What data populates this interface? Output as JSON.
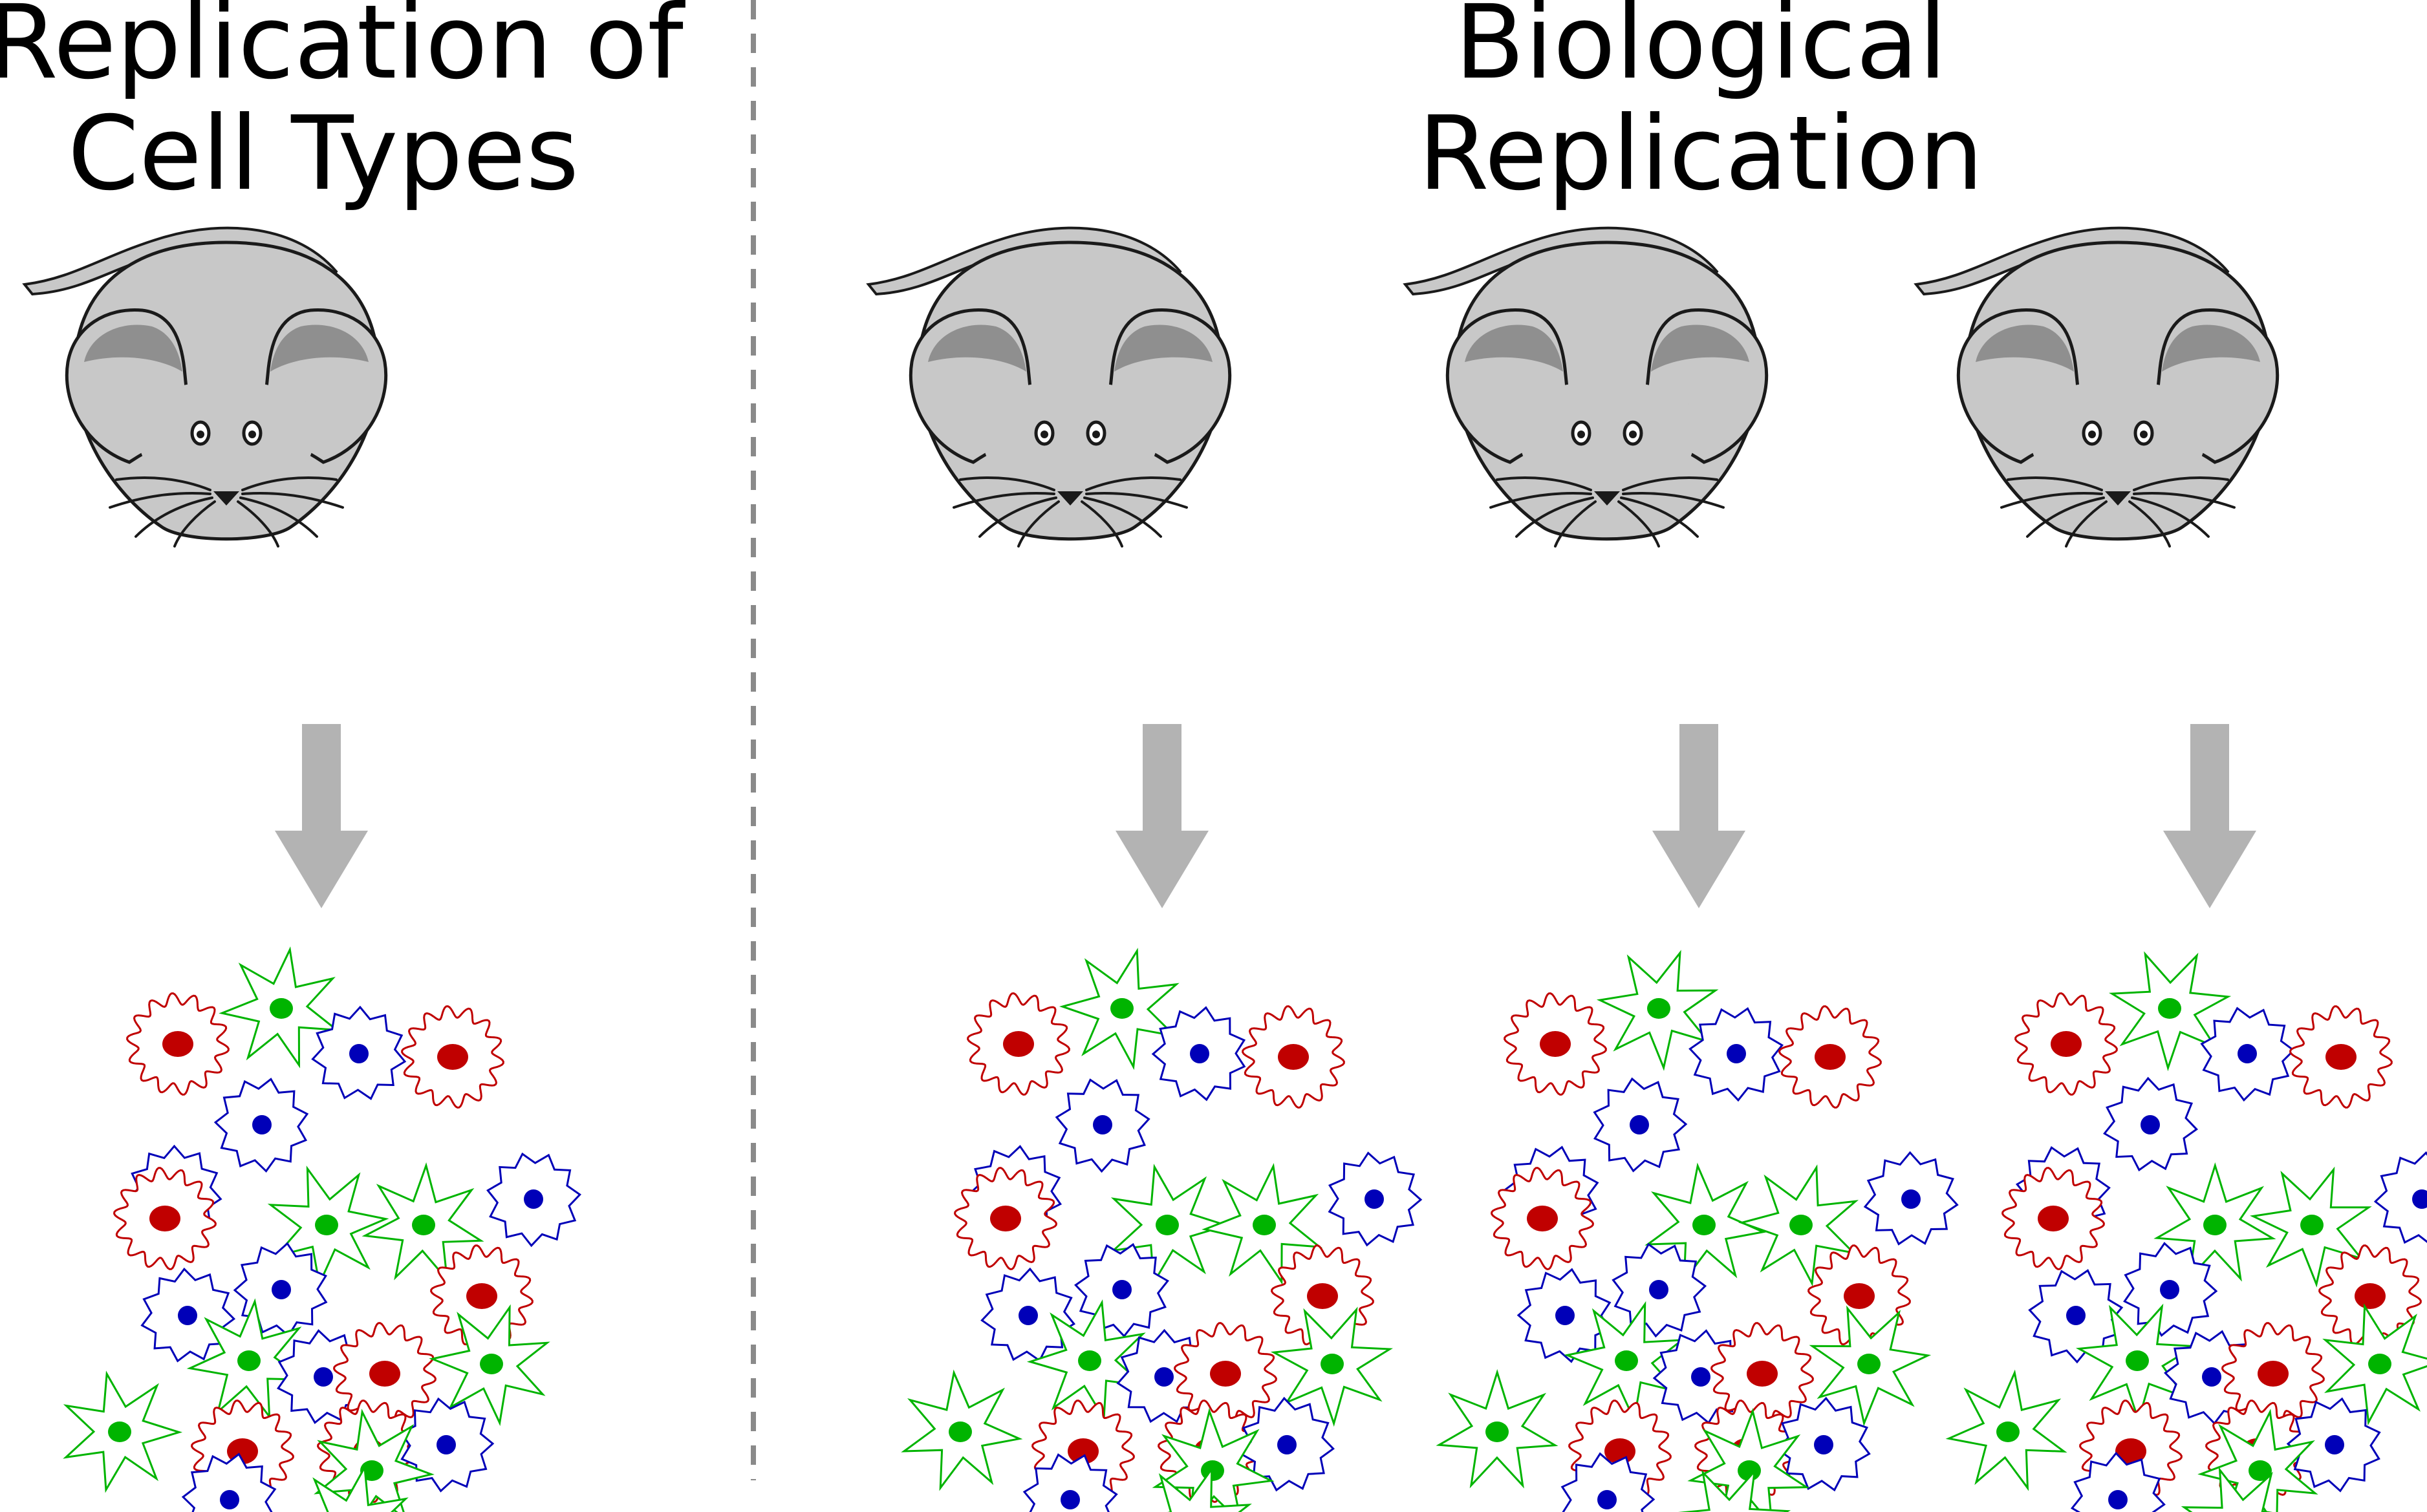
{
  "titles": {
    "left": {
      "line1": "Replication of",
      "line2": "Cell Types"
    },
    "right": {
      "line1": "Biological",
      "line2": "Replication"
    }
  },
  "panels": [
    {
      "id": "cell-type-replication",
      "mice": 1
    },
    {
      "id": "biological-replication",
      "mice": 3
    }
  ],
  "colors": {
    "mouse_body": "#c8c8c8",
    "mouse_ear_inner": "#8f8f8f",
    "outline": "#1a1a1a",
    "arrow": "#b3b3b3",
    "divider": "#8a8a8a",
    "cell_red": "#c00000",
    "cell_green": "#00b400",
    "cell_blue": "#0000b8"
  },
  "icons": [
    "mouse-icon",
    "down-arrow-icon",
    "red-cell-icon",
    "green-cell-icon",
    "blue-cell-icon"
  ]
}
